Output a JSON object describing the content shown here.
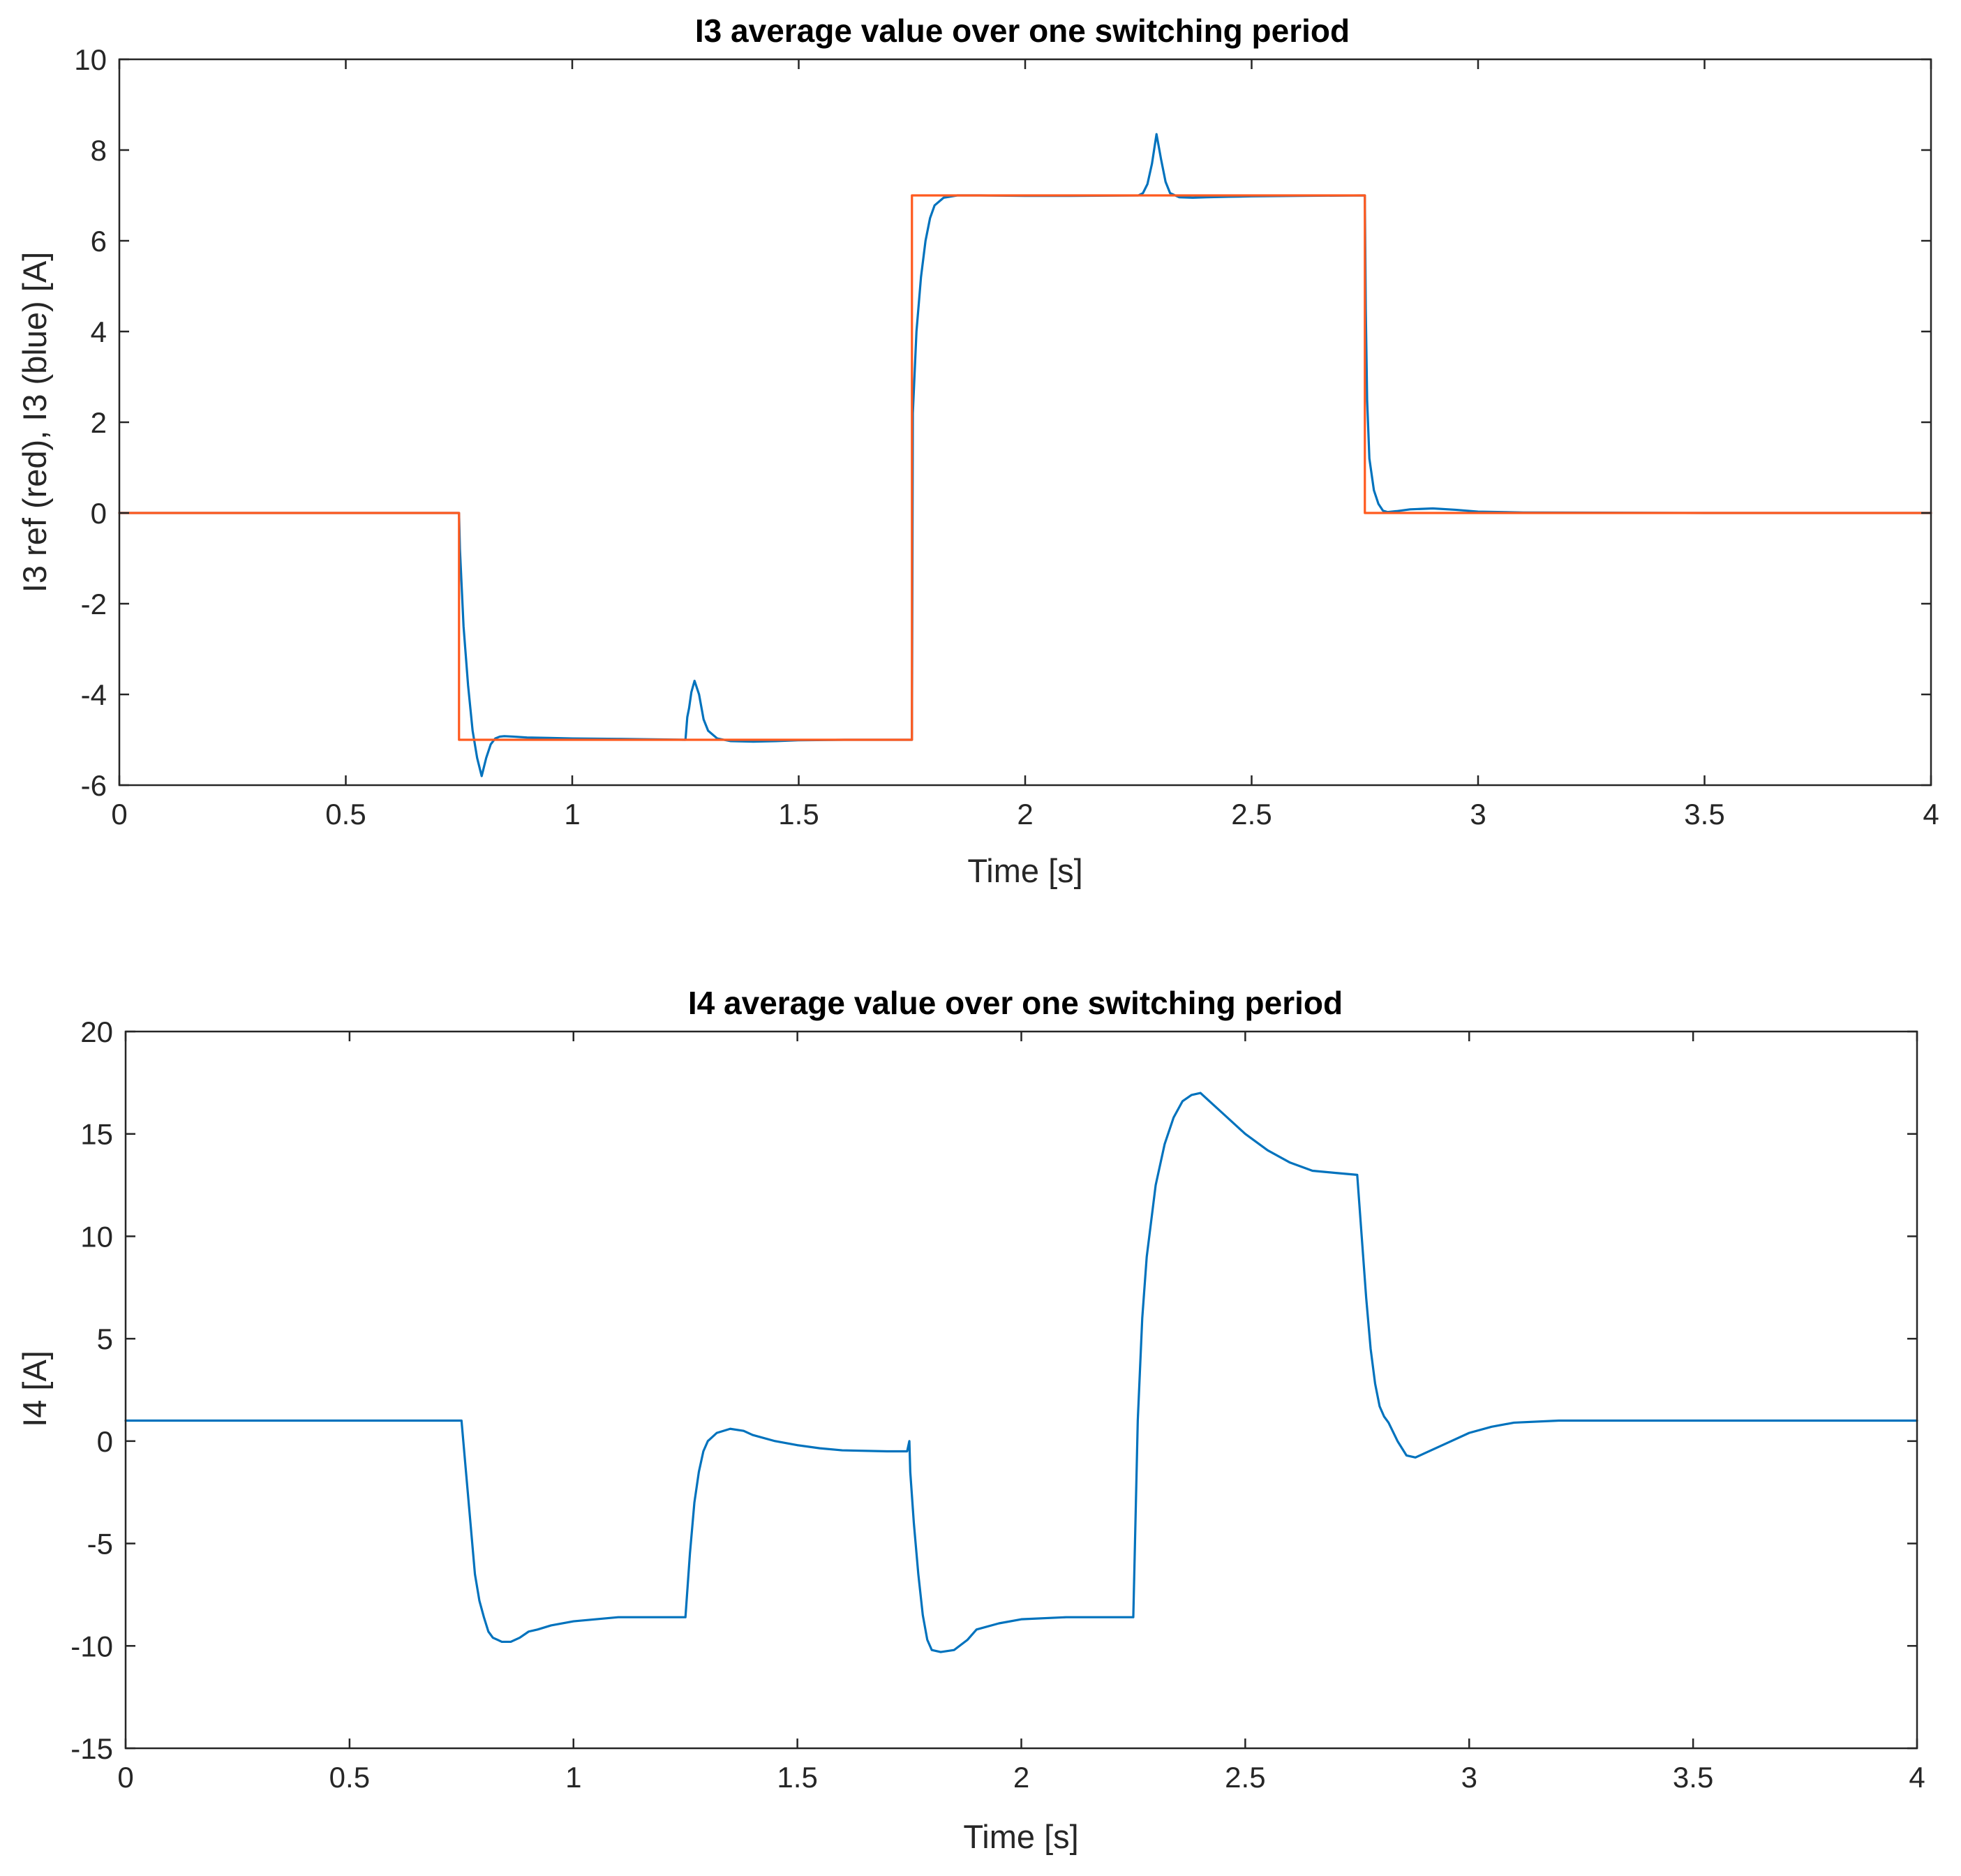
{
  "chart_data": [
    {
      "type": "line",
      "title": "I3 average value over one switching period",
      "xlabel": "Time [s]",
      "ylabel": "I3 ref (red), I3 (blue) [A]",
      "xlim": [
        0,
        4
      ],
      "ylim": [
        -6,
        10
      ],
      "xticks": [
        0,
        0.5,
        1,
        1.5,
        2,
        2.5,
        3,
        3.5,
        4
      ],
      "yticks": [
        -6,
        -4,
        -2,
        0,
        2,
        4,
        6,
        8,
        10
      ],
      "grid": false,
      "series": [
        {
          "color": "#0072BD",
          "x": [
            0,
            0.75,
            0.752,
            0.76,
            0.77,
            0.78,
            0.79,
            0.8,
            0.81,
            0.82,
            0.83,
            0.84,
            0.85,
            0.87,
            0.9,
            0.95,
            1.0,
            1.1,
            1.25,
            1.254,
            1.258,
            1.263,
            1.27,
            1.28,
            1.29,
            1.3,
            1.32,
            1.35,
            1.4,
            1.45,
            1.5,
            1.6,
            1.75,
            1.752,
            1.76,
            1.77,
            1.78,
            1.79,
            1.8,
            1.82,
            1.85,
            1.9,
            2.0,
            2.1,
            2.25,
            2.26,
            2.27,
            2.28,
            2.29,
            2.3,
            2.31,
            2.32,
            2.34,
            2.37,
            2.4,
            2.45,
            2.5,
            2.6,
            2.75,
            2.752,
            2.755,
            2.76,
            2.77,
            2.78,
            2.79,
            2.8,
            2.82,
            2.85,
            2.9,
            2.95,
            3.0,
            3.1,
            3.5,
            4.0
          ],
          "y": [
            0,
            0,
            -0.8,
            -2.5,
            -3.8,
            -4.8,
            -5.4,
            -5.8,
            -5.4,
            -5.1,
            -4.97,
            -4.93,
            -4.92,
            -4.93,
            -4.95,
            -4.96,
            -4.97,
            -4.98,
            -5.0,
            -4.5,
            -4.3,
            -3.95,
            -3.7,
            -4.0,
            -4.55,
            -4.8,
            -4.97,
            -5.03,
            -5.04,
            -5.03,
            -5.01,
            -5.0,
            -5.0,
            2.2,
            4.0,
            5.2,
            6.0,
            6.5,
            6.78,
            6.95,
            7.0,
            7.0,
            6.99,
            6.99,
            7.0,
            7.05,
            7.25,
            7.7,
            8.35,
            7.8,
            7.3,
            7.05,
            6.96,
            6.95,
            6.96,
            6.97,
            6.98,
            6.99,
            7.0,
            4.5,
            2.5,
            1.2,
            0.5,
            0.2,
            0.05,
            0.02,
            0.04,
            0.08,
            0.1,
            0.07,
            0.03,
            0.01,
            0.0,
            0.0
          ]
        },
        {
          "color": "#FF5A1F",
          "x": [
            0,
            0.75,
            0.75,
            1.75,
            1.75,
            2.75,
            2.75,
            4.0
          ],
          "y": [
            0,
            0,
            -5,
            -5,
            7,
            7,
            0,
            0
          ]
        }
      ]
    },
    {
      "type": "line",
      "title": "I4 average value over one switching period",
      "xlabel": "Time [s]",
      "ylabel": "I4 [A]",
      "xlim": [
        0,
        4
      ],
      "ylim": [
        -15,
        20
      ],
      "xticks": [
        0,
        0.5,
        1,
        1.5,
        2,
        2.5,
        3,
        3.5,
        4
      ],
      "yticks": [
        -15,
        -10,
        -5,
        0,
        5,
        10,
        15,
        20
      ],
      "grid": false,
      "series": [
        {
          "color": "#0072BD",
          "x": [
            0,
            0.75,
            0.76,
            0.77,
            0.78,
            0.79,
            0.8,
            0.81,
            0.82,
            0.83,
            0.84,
            0.86,
            0.88,
            0.9,
            0.92,
            0.95,
            1.0,
            1.1,
            1.2,
            1.25,
            1.26,
            1.27,
            1.28,
            1.29,
            1.3,
            1.32,
            1.35,
            1.38,
            1.4,
            1.45,
            1.5,
            1.55,
            1.6,
            1.7,
            1.745,
            1.75,
            1.752,
            1.76,
            1.77,
            1.78,
            1.79,
            1.8,
            1.82,
            1.85,
            1.88,
            1.9,
            1.95,
            2.0,
            2.1,
            2.25,
            2.26,
            2.27,
            2.28,
            2.3,
            2.32,
            2.34,
            2.36,
            2.38,
            2.4,
            2.42,
            2.45,
            2.5,
            2.55,
            2.6,
            2.65,
            2.7,
            2.75,
            2.76,
            2.77,
            2.78,
            2.79,
            2.8,
            2.81,
            2.82,
            2.84,
            2.86,
            2.88,
            2.9,
            2.95,
            3.0,
            3.05,
            3.1,
            3.2,
            3.5,
            4.0
          ],
          "y": [
            1.0,
            1.0,
            -1.5,
            -4.0,
            -6.5,
            -7.8,
            -8.6,
            -9.3,
            -9.6,
            -9.7,
            -9.8,
            -9.8,
            -9.6,
            -9.3,
            -9.2,
            -9.0,
            -8.8,
            -8.6,
            -8.6,
            -8.6,
            -5.5,
            -3.0,
            -1.5,
            -0.5,
            0.0,
            0.4,
            0.6,
            0.5,
            0.3,
            0.0,
            -0.2,
            -0.35,
            -0.45,
            -0.5,
            -0.5,
            0.0,
            -1.5,
            -4.0,
            -6.5,
            -8.5,
            -9.7,
            -10.2,
            -10.3,
            -10.2,
            -9.7,
            -9.2,
            -8.9,
            -8.7,
            -8.6,
            -8.6,
            1.0,
            6.0,
            9.0,
            12.5,
            14.5,
            15.8,
            16.6,
            16.9,
            17.0,
            16.6,
            16.0,
            15.0,
            14.2,
            13.6,
            13.2,
            13.1,
            13.0,
            10.0,
            7.0,
            4.5,
            2.8,
            1.7,
            1.2,
            0.9,
            0.0,
            -0.7,
            -0.8,
            -0.6,
            -0.1,
            0.4,
            0.7,
            0.9,
            1.0,
            1.0,
            1.0
          ]
        }
      ]
    }
  ]
}
